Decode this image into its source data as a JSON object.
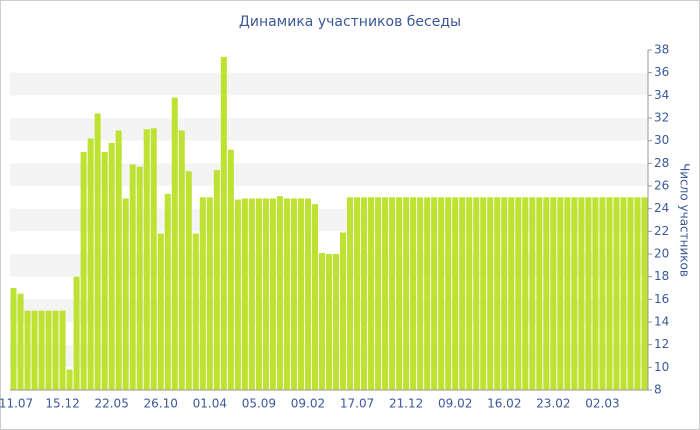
{
  "chart_data": {
    "type": "bar",
    "title": "Динамика участников беседы",
    "y_label": "Число участников",
    "color": "#bde232",
    "band_color": "#f4f4f4",
    "categories": [
      "11.07",
      null,
      null,
      null,
      null,
      null,
      null,
      "15.12",
      null,
      null,
      null,
      null,
      null,
      null,
      "22.05",
      null,
      null,
      null,
      null,
      null,
      null,
      "26.10",
      null,
      null,
      null,
      null,
      null,
      null,
      "01.04",
      null,
      null,
      null,
      null,
      null,
      null,
      "05.09",
      null,
      null,
      null,
      null,
      null,
      null,
      "09.02",
      null,
      null,
      null,
      null,
      null,
      null,
      "17.07",
      null,
      null,
      null,
      null,
      null,
      null,
      "21.12",
      null,
      null,
      null,
      null,
      null,
      null,
      "09.02",
      null,
      null,
      null,
      null,
      null,
      null,
      "16.02",
      null,
      null,
      null,
      null,
      null,
      null,
      "23.02",
      null,
      null,
      null,
      null,
      null,
      null,
      "02.03",
      null,
      null,
      null,
      null,
      null,
      null
    ],
    "values": [
      17,
      16.5,
      15,
      15,
      15,
      15,
      15,
      15,
      9.8,
      18,
      29,
      30.2,
      32.4,
      29,
      29.8,
      30.9,
      24.9,
      27.9,
      27.7,
      31,
      31.1,
      21.8,
      25.3,
      33.8,
      30.9,
      27.3,
      21.8,
      25,
      25,
      27.4,
      37.4,
      29.2,
      24.8,
      24.9,
      24.9,
      24.9,
      24.9,
      24.9,
      25.1,
      24.9,
      24.9,
      24.9,
      24.9,
      24.4,
      20.1,
      20,
      20,
      21.9,
      25,
      25,
      25,
      25,
      25,
      25,
      25,
      25,
      25,
      25,
      25,
      25,
      25,
      25,
      25,
      25,
      25,
      25,
      25,
      25,
      25,
      25,
      25,
      25,
      25,
      25,
      25,
      25,
      25,
      25,
      25,
      25,
      25,
      25,
      25,
      25,
      25,
      25,
      25,
      25,
      25,
      25,
      25
    ],
    "ylim": [
      8,
      38
    ],
    "yticks": [
      8,
      10,
      12,
      14,
      16,
      18,
      20,
      22,
      24,
      26,
      28,
      30,
      32,
      34,
      36,
      38
    ],
    "bands": true
  }
}
